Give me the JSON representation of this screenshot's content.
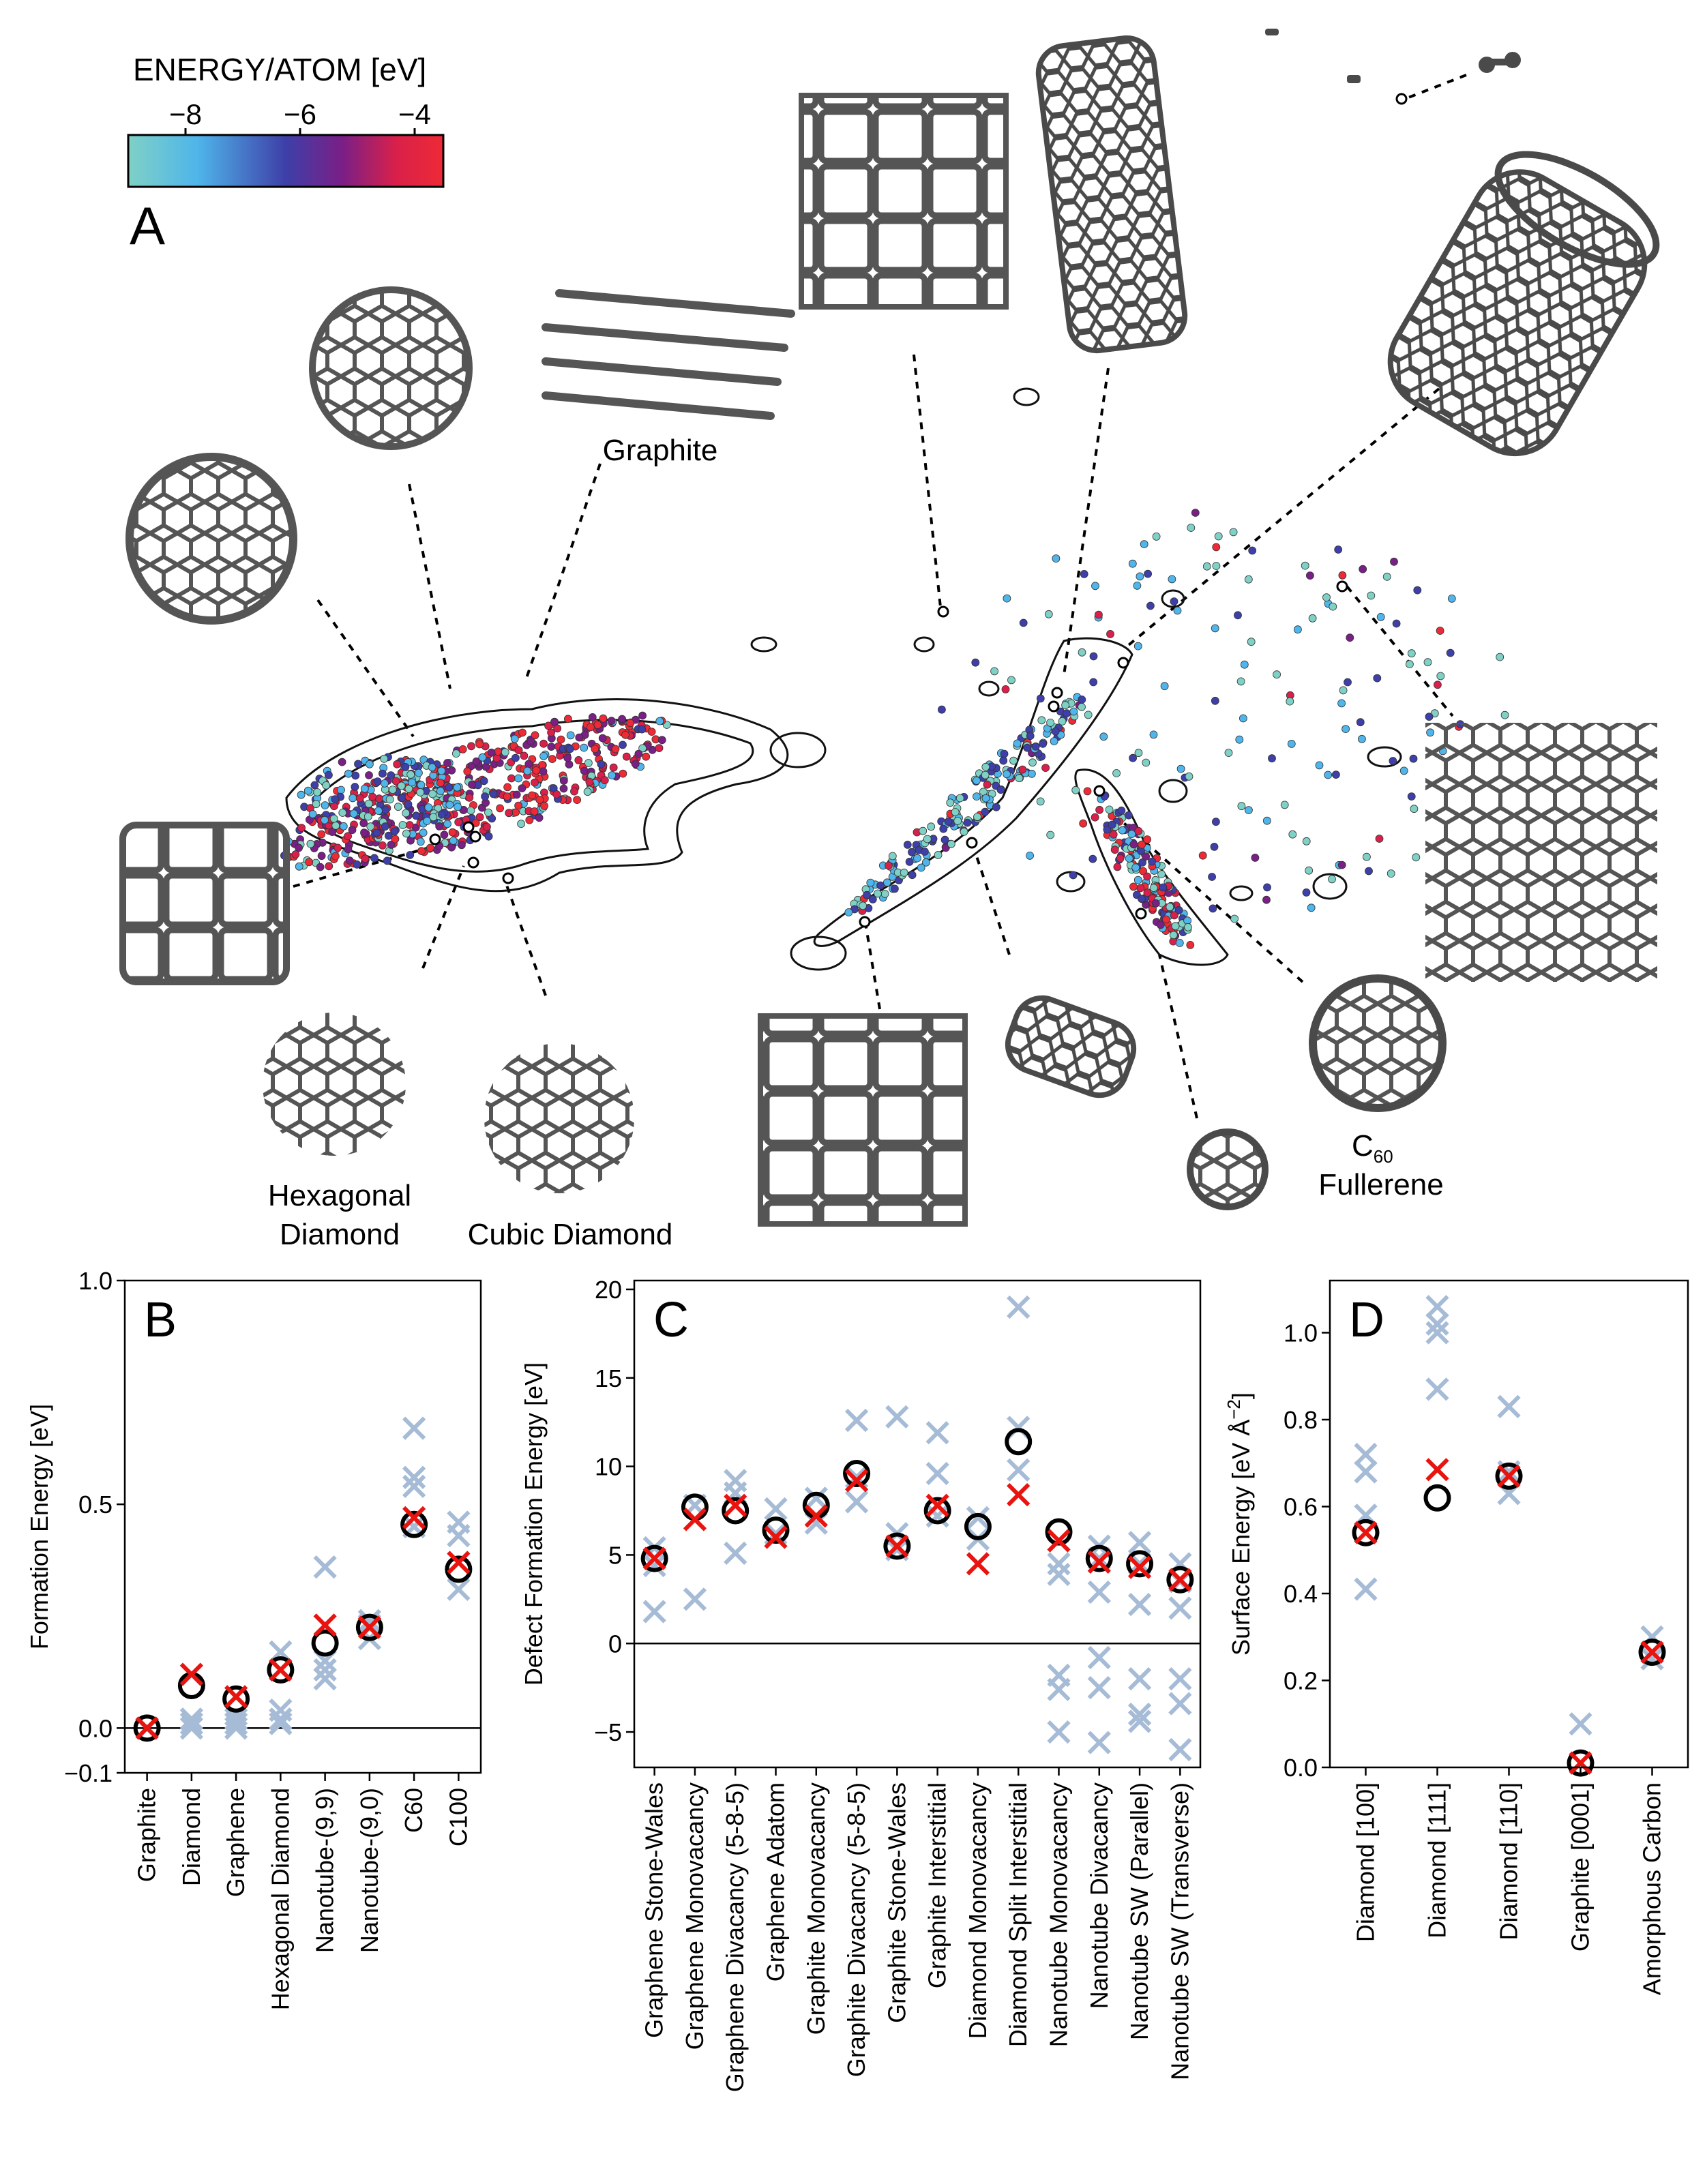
{
  "figure": {
    "panel_a": {
      "panel_label": "A",
      "colorbar": {
        "title": "ENERGY/ATOM  [eV]",
        "ticks": [
          -8,
          -6,
          -4
        ],
        "range": [
          -9,
          -3.5
        ],
        "colors": [
          "#7fd1c6",
          "#4fb5ea",
          "#3e3fa8",
          "#7a1f86",
          "#d9204a",
          "#ee2a36"
        ]
      },
      "structure_labels": {
        "graphite": "Graphite",
        "hexagonal_diamond_1": "Hexagonal",
        "hexagonal_diamond_2": "Diamond",
        "cubic_diamond": "Cubic Diamond",
        "fullerene_c": "C",
        "fullerene_sub": "60",
        "fullerene_word": "Fullerene"
      }
    },
    "panel_b": {
      "panel_label": "B",
      "chart_data": {
        "type": "scatter",
        "ylabel": "Formation Energy [eV]",
        "ylim": [
          -0.1,
          1.0
        ],
        "yticks": [
          -0.1,
          0.0,
          0.5,
          1.0
        ],
        "ytick_labels": [
          "−0.1",
          "0.0",
          "0.5",
          "1.0"
        ],
        "categories": [
          "Graphite",
          "Diamond",
          "Graphene",
          "Hexagonal Diamond",
          "Nanotube-(9,9)",
          "Nanotube-(9,0)",
          "C60",
          "C100"
        ],
        "reference": [
          0.0,
          0.095,
          0.065,
          0.13,
          0.19,
          0.225,
          0.455,
          0.355
        ],
        "model": [
          0.0,
          0.12,
          0.07,
          0.13,
          0.23,
          0.225,
          0.47,
          0.37
        ],
        "others": [
          [
            0.0,
            0.0,
            0.0
          ],
          [
            0.0,
            0.01,
            0.02
          ],
          [
            0.0,
            0.01,
            0.02,
            0.03
          ],
          [
            0.01,
            0.02,
            0.04,
            0.13,
            0.17
          ],
          [
            0.11,
            0.13,
            0.15,
            0.36
          ],
          [
            0.2,
            0.23,
            0.24
          ],
          [
            0.45,
            0.54,
            0.56,
            0.67
          ],
          [
            0.31,
            0.37,
            0.43,
            0.46
          ]
        ],
        "colors": {
          "reference": "#000000",
          "model": "#e8140f",
          "others": "#a6bbd6"
        }
      }
    },
    "panel_c": {
      "panel_label": "C",
      "chart_data": {
        "type": "scatter",
        "ylabel": "Defect Formation Energy [eV]",
        "ylim": [
          -7,
          20.5
        ],
        "yticks": [
          -5,
          0,
          5,
          10,
          15,
          20
        ],
        "ytick_labels": [
          "−5",
          "0",
          "5",
          "10",
          "15",
          "20"
        ],
        "categories": [
          "Graphene Stone-Wales",
          "Graphene Monovacancy",
          "Graphene Divacancy (5-8-5)",
          "Graphene Adatom",
          "Graphite Monovacancy",
          "Graphite Divacancy (5-8-5)",
          "Graphite Stone-Wales",
          "Graphite Interstitial",
          "Diamond Monovacancy",
          "Diamond Split Interstitial",
          "Nanotube Monovacancy",
          "Nanotube Divacancy",
          "Nanotube SW (Parallel)",
          "Nanotube SW (Transverse)"
        ],
        "reference": [
          4.8,
          7.7,
          7.5,
          6.4,
          7.8,
          9.6,
          5.5,
          7.5,
          6.6,
          11.4,
          6.3,
          4.8,
          4.5,
          3.6
        ],
        "model": [
          4.8,
          7.0,
          7.8,
          6.0,
          7.2,
          9.2,
          5.5,
          7.8,
          4.5,
          8.4,
          5.8,
          4.6,
          4.3,
          3.6
        ],
        "others": [
          [
            1.8,
            4.4,
            5.4
          ],
          [
            2.5,
            7.8
          ],
          [
            5.1,
            8.5,
            9.2
          ],
          [
            6.2,
            7.6
          ],
          [
            6.8,
            8.2
          ],
          [
            8.0,
            9.4,
            12.6
          ],
          [
            5.3,
            6.2,
            12.8
          ],
          [
            7.2,
            9.6,
            11.9
          ],
          [
            5.9,
            7.1
          ],
          [
            9.8,
            12.2,
            19.0
          ],
          [
            -5.0,
            -2.6,
            -1.8,
            3.9,
            4.5
          ],
          [
            -5.6,
            -2.5,
            -0.8,
            2.9,
            4.8,
            5.5
          ],
          [
            -4.4,
            -4.0,
            -2.0,
            2.2,
            4.5,
            5.7
          ],
          [
            -6.0,
            -3.4,
            -2.0,
            2.0,
            3.5,
            4.5
          ]
        ],
        "colors": {
          "reference": "#000000",
          "model": "#e8140f",
          "others": "#a6bbd6"
        }
      }
    },
    "panel_d": {
      "panel_label": "D",
      "chart_data": {
        "type": "scatter",
        "ylabel_main": "Surface Energy [eV Å",
        "ylabel_sup": "−2",
        "ylabel_end": "]",
        "ylim": [
          0.0,
          1.12
        ],
        "yticks": [
          0.0,
          0.2,
          0.4,
          0.6,
          0.8,
          1.0
        ],
        "ytick_labels": [
          "0.0",
          "0.2",
          "0.4",
          "0.6",
          "0.8",
          "1.0"
        ],
        "categories": [
          "Diamond [100]",
          "Diamond [111]",
          "Diamond [110]",
          "Graphite [0001]",
          "Amorphous Carbon"
        ],
        "reference": [
          0.54,
          0.62,
          0.67,
          0.01,
          0.265
        ],
        "model": [
          0.54,
          0.685,
          0.67,
          0.01,
          0.265
        ],
        "others": [
          [
            0.41,
            0.58,
            0.68,
            0.72
          ],
          [
            0.87,
            1.0,
            1.02,
            1.06
          ],
          [
            0.63,
            0.68,
            0.83
          ],
          [
            0.1
          ],
          [
            0.25,
            0.3
          ]
        ],
        "colors": {
          "reference": "#000000",
          "model": "#e8140f",
          "others": "#a6bbd6"
        }
      }
    }
  }
}
